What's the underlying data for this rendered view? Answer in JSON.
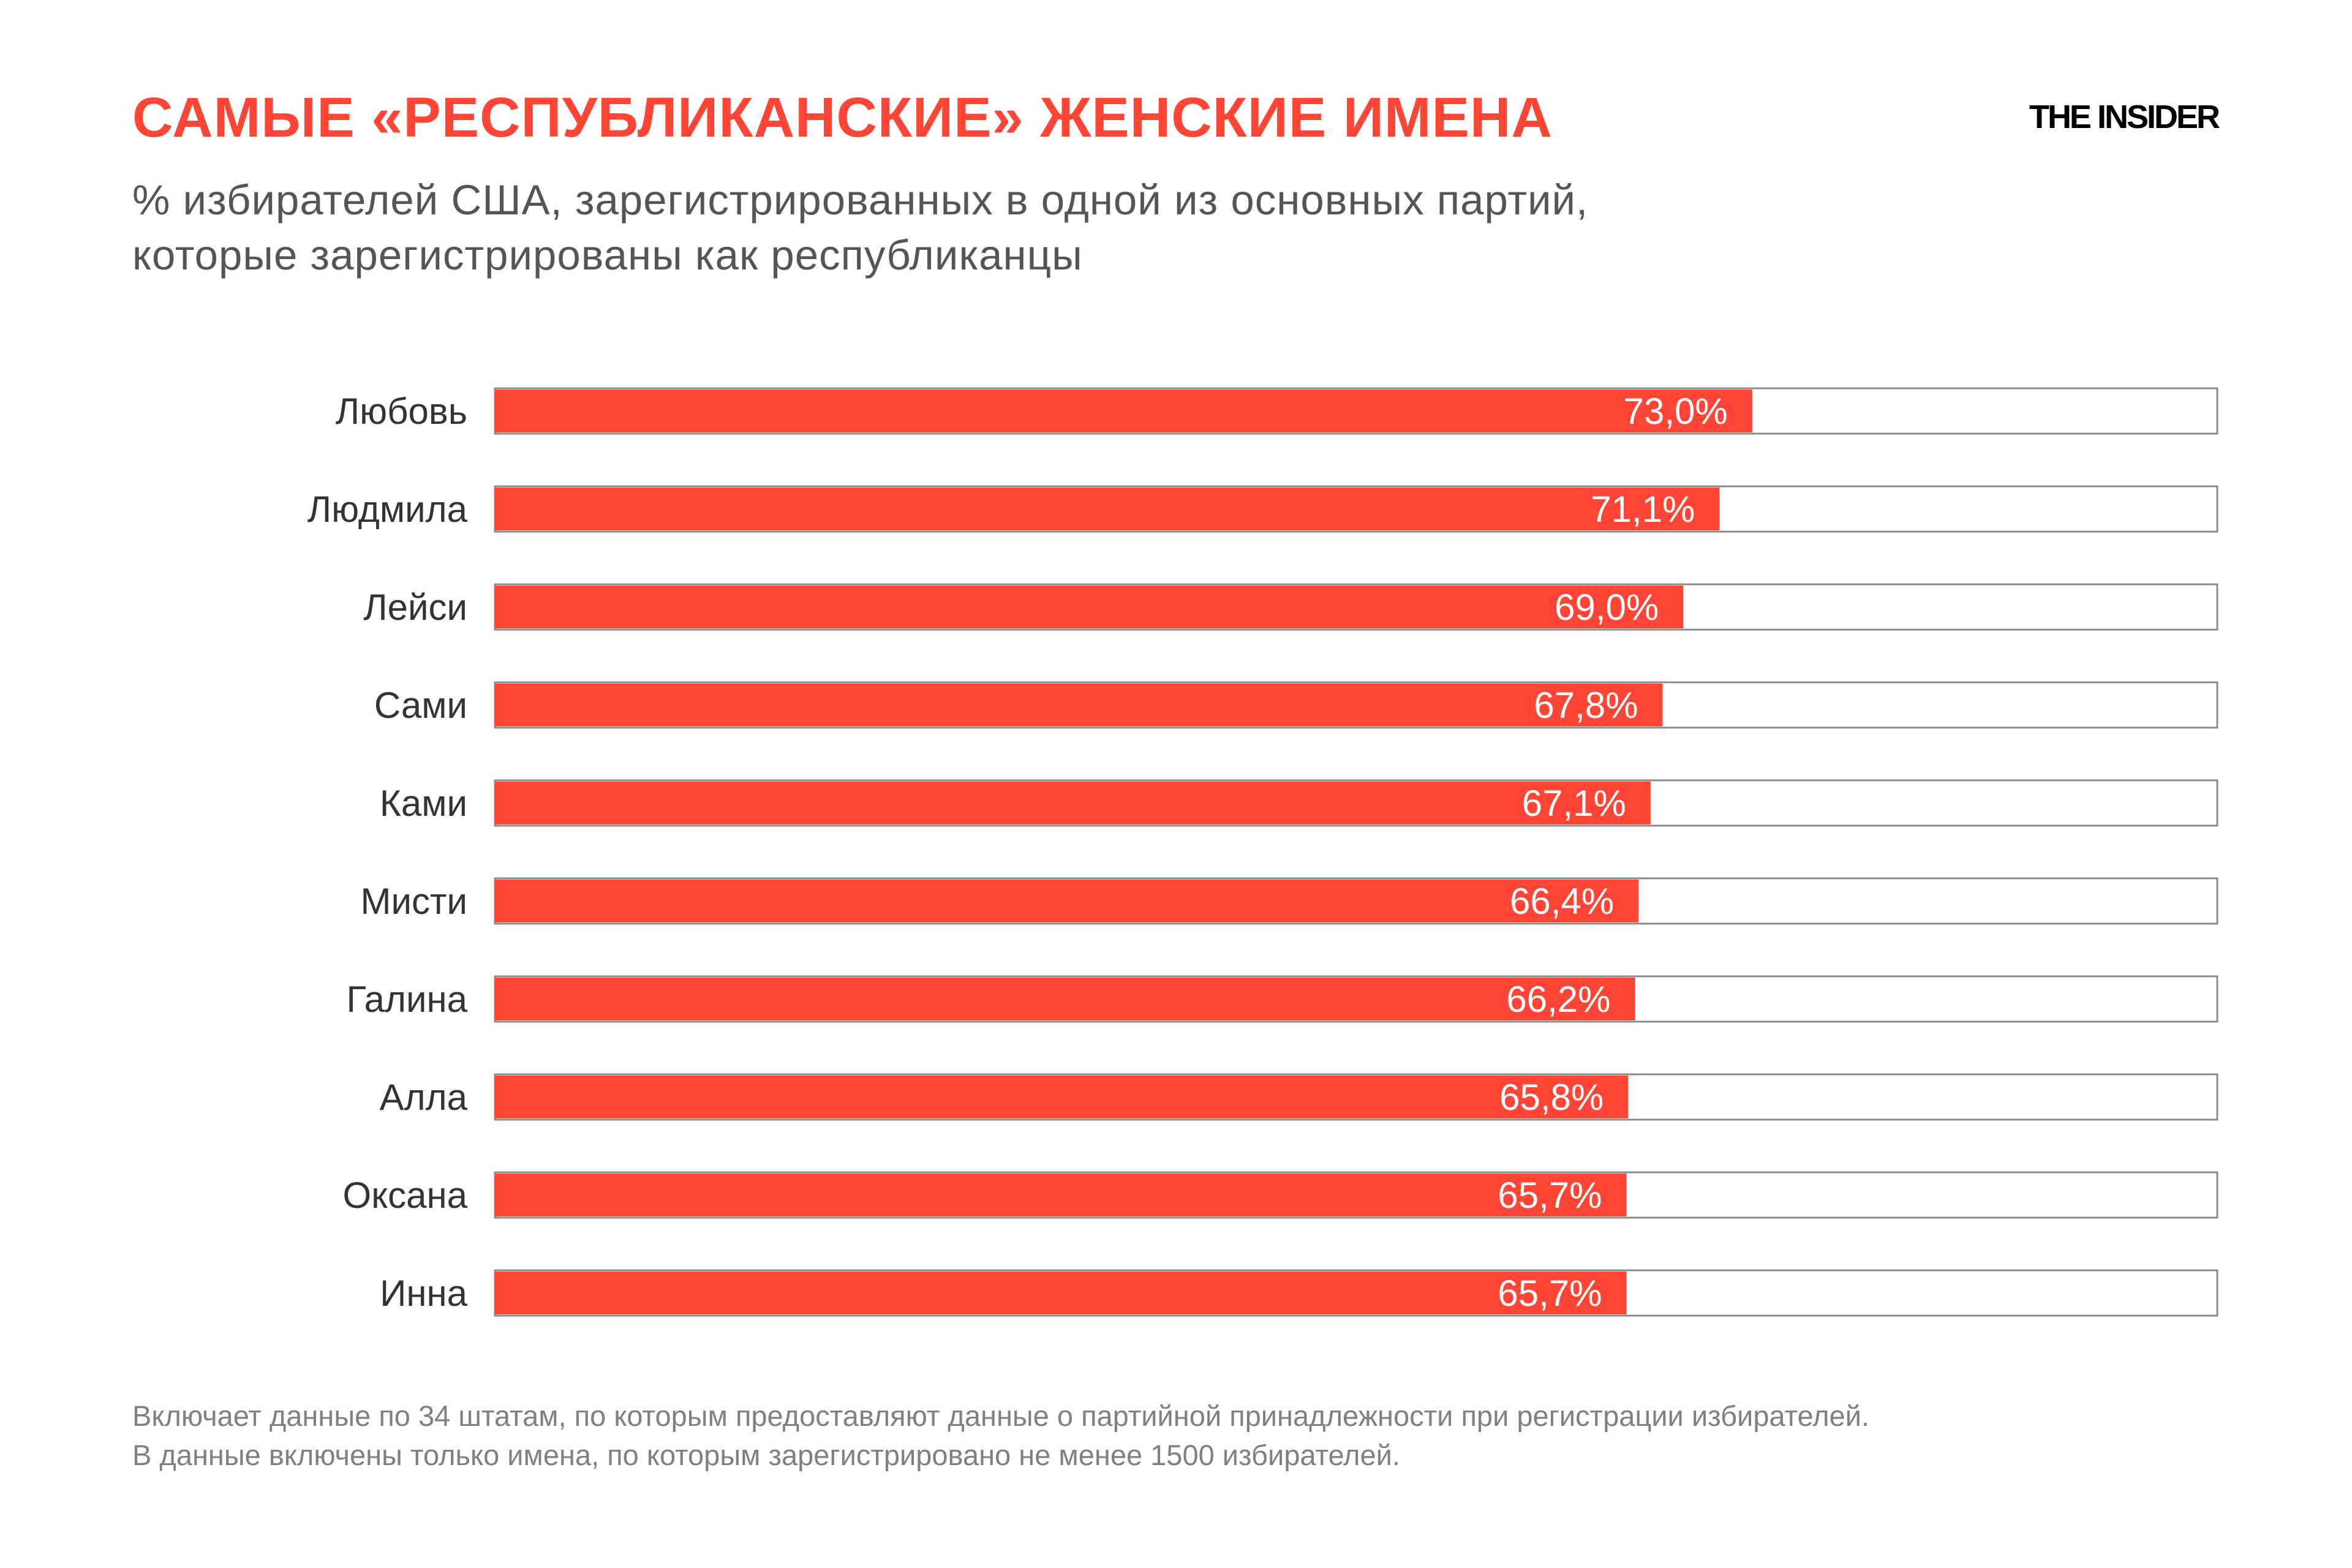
{
  "header": {
    "title": "САМЫЕ «РЕСПУБЛИКАНСКИЕ» ЖЕНСКИЕ ИМЕНА",
    "subtitle_lines": [
      "% избирателей США, зарегистрированных в одной из основных партий,",
      "которые зарегистрированы как республиканцы"
    ],
    "logo": "THE INSIDER"
  },
  "footnote_lines": [
    "Включает данные по 34 штатам, по которым предоставляют данные о партийной принадлежности при регистрации избирателей.",
    "В данные включены только имена, по которым зарегистрировано не менее 1500 избирателей."
  ],
  "chart_data": {
    "type": "bar",
    "orientation": "horizontal",
    "title": "САМЫЕ «РЕСПУБЛИКАНСКИЕ» ЖЕНСКИЕ ИМЕНА",
    "categories": [
      "Любовь",
      "Людмила",
      "Лейси",
      "Сами",
      "Ками",
      "Мисти",
      "Галина",
      "Алла",
      "Оксана",
      "Инна"
    ],
    "values": [
      73.0,
      71.1,
      69.0,
      67.8,
      67.1,
      66.4,
      66.2,
      65.8,
      65.7,
      65.7
    ],
    "labels": [
      "73,0%",
      "71,1%",
      "69,0%",
      "67,8%",
      "67,1%",
      "66,4%",
      "66,2%",
      "65,8%",
      "65,7%",
      "65,7%"
    ],
    "xlim": [
      0,
      100
    ],
    "grid": false,
    "colors": {
      "bar": "#ff4535",
      "track_border": "#8c8c8c",
      "label": "#333333",
      "value_label": "#ffffff"
    }
  }
}
